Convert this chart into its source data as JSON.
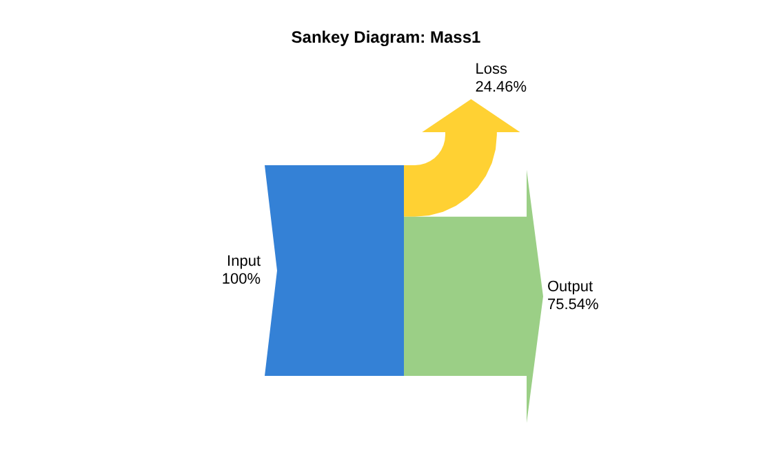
{
  "chart_data": {
    "type": "other",
    "title": "Sankey Diagram: Mass1",
    "categories": [
      "Input",
      "Loss",
      "Output"
    ],
    "values": [
      100,
      24.46,
      75.54
    ],
    "value_labels": [
      "100%",
      "24.46%",
      "75.54%"
    ],
    "colors": [
      "#3481d6",
      "#ffd133",
      "#9bcf86"
    ]
  }
}
